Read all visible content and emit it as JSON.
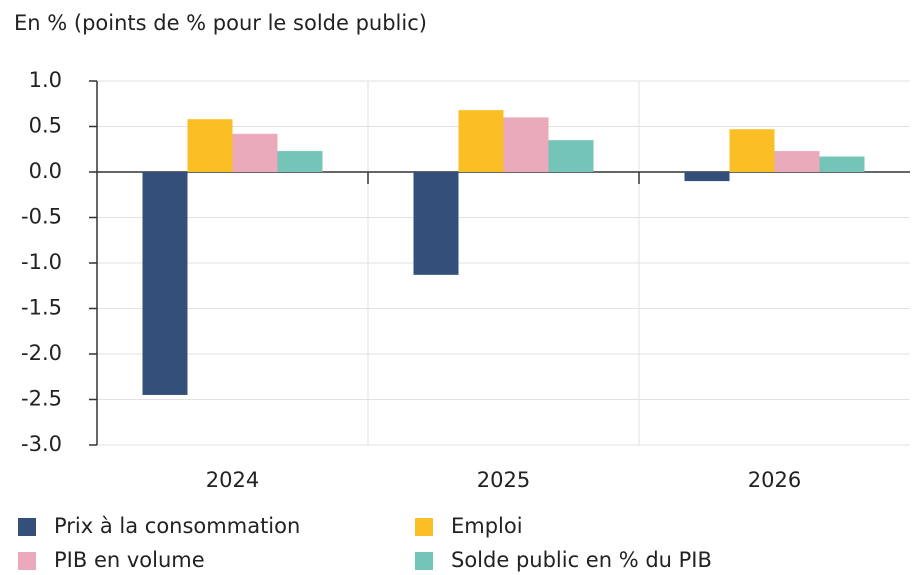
{
  "chart_data": {
    "type": "bar",
    "title": "En % (points de % pour le solde public)",
    "categories": [
      "2024",
      "2025",
      "2026"
    ],
    "series": [
      {
        "name": "Prix à la consommation",
        "color": "#34507a",
        "values": [
          -2.45,
          -1.13,
          -0.1
        ]
      },
      {
        "name": "Emploi",
        "color": "#fbbf26",
        "values": [
          0.58,
          0.68,
          0.47
        ]
      },
      {
        "name": "PIB en volume",
        "color": "#eaaabb",
        "values": [
          0.42,
          0.6,
          0.23
        ]
      },
      {
        "name": "Solde public en % du PIB",
        "color": "#74c4b8",
        "values": [
          0.23,
          0.35,
          0.17
        ]
      }
    ],
    "ylim": [
      -3,
      1
    ],
    "yticks": [
      {
        "value": 1,
        "label": "1.0"
      },
      0.5,
      {
        "value": 0,
        "label": "0.0"
      },
      -0.5,
      {
        "value": -1,
        "label": "-1.0"
      },
      -1.5,
      {
        "value": -2,
        "label": "-2.0"
      },
      -2.5,
      {
        "value": -3,
        "label": "-3.0"
      }
    ],
    "grid": true
  }
}
